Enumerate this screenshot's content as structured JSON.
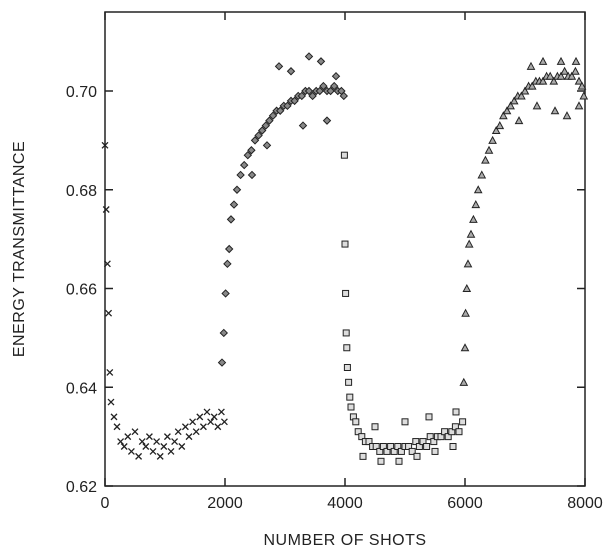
{
  "chart_data": {
    "type": "scatter",
    "title": "",
    "xlabel": "NUMBER OF SHOTS",
    "ylabel": "ENERGY TRANSMITTANCE",
    "xlim": [
      0,
      8000
    ],
    "ylim": [
      0.62,
      0.716
    ],
    "grid": false,
    "legend": "none",
    "x_ticks": [
      {
        "value": 0,
        "label": "0"
      },
      {
        "value": 2000,
        "label": "2000"
      },
      {
        "value": 4000,
        "label": "4000"
      },
      {
        "value": 6000,
        "label": "6000"
      },
      {
        "value": 8000,
        "label": "8000"
      }
    ],
    "y_ticks": [
      {
        "value": 0.62,
        "label": "0.62"
      },
      {
        "value": 0.64,
        "label": "0.64"
      },
      {
        "value": 0.66,
        "label": "0.66"
      },
      {
        "value": 0.68,
        "label": "0.68"
      },
      {
        "value": 0.7,
        "label": "0.70"
      }
    ],
    "series": [
      {
        "marker": "x",
        "color": "#222222",
        "points": [
          [
            0,
            0.689
          ],
          [
            20,
            0.676
          ],
          [
            40,
            0.665
          ],
          [
            60,
            0.655
          ],
          [
            80,
            0.643
          ],
          [
            100,
            0.637
          ],
          [
            150,
            0.634
          ],
          [
            200,
            0.632
          ],
          [
            260,
            0.629
          ],
          [
            320,
            0.628
          ],
          [
            380,
            0.63
          ],
          [
            440,
            0.627
          ],
          [
            500,
            0.631
          ],
          [
            560,
            0.626
          ],
          [
            620,
            0.629
          ],
          [
            680,
            0.628
          ],
          [
            740,
            0.63
          ],
          [
            800,
            0.627
          ],
          [
            860,
            0.629
          ],
          [
            920,
            0.626
          ],
          [
            980,
            0.628
          ],
          [
            1040,
            0.63
          ],
          [
            1100,
            0.627
          ],
          [
            1160,
            0.629
          ],
          [
            1220,
            0.631
          ],
          [
            1280,
            0.628
          ],
          [
            1340,
            0.632
          ],
          [
            1400,
            0.63
          ],
          [
            1460,
            0.633
          ],
          [
            1520,
            0.631
          ],
          [
            1580,
            0.634
          ],
          [
            1640,
            0.632
          ],
          [
            1700,
            0.635
          ],
          [
            1760,
            0.633
          ],
          [
            1820,
            0.634
          ],
          [
            1880,
            0.632
          ],
          [
            1940,
            0.635
          ],
          [
            1990,
            0.633
          ]
        ]
      },
      {
        "marker": "diamond",
        "color": "#222222",
        "points": [
          [
            1950,
            0.645
          ],
          [
            1980,
            0.651
          ],
          [
            2010,
            0.659
          ],
          [
            2040,
            0.665
          ],
          [
            2070,
            0.668
          ],
          [
            2100,
            0.674
          ],
          [
            2150,
            0.677
          ],
          [
            2200,
            0.68
          ],
          [
            2260,
            0.683
          ],
          [
            2320,
            0.685
          ],
          [
            2380,
            0.687
          ],
          [
            2440,
            0.688
          ],
          [
            2500,
            0.69
          ],
          [
            2560,
            0.691
          ],
          [
            2620,
            0.692
          ],
          [
            2680,
            0.693
          ],
          [
            2740,
            0.694
          ],
          [
            2800,
            0.695
          ],
          [
            2860,
            0.696
          ],
          [
            2920,
            0.696
          ],
          [
            2980,
            0.697
          ],
          [
            3040,
            0.697
          ],
          [
            3100,
            0.698
          ],
          [
            3160,
            0.698
          ],
          [
            3220,
            0.699
          ],
          [
            3280,
            0.699
          ],
          [
            3340,
            0.7
          ],
          [
            3400,
            0.7
          ],
          [
            3460,
            0.699
          ],
          [
            3520,
            0.7
          ],
          [
            3580,
            0.7
          ],
          [
            3640,
            0.701
          ],
          [
            3700,
            0.7
          ],
          [
            3760,
            0.7
          ],
          [
            3820,
            0.701
          ],
          [
            3880,
            0.7
          ],
          [
            3940,
            0.7
          ],
          [
            3980,
            0.699
          ],
          [
            2900,
            0.705
          ],
          [
            3100,
            0.704
          ],
          [
            3400,
            0.707
          ],
          [
            3600,
            0.706
          ],
          [
            3300,
            0.693
          ],
          [
            3700,
            0.694
          ],
          [
            3850,
            0.703
          ],
          [
            2450,
            0.683
          ],
          [
            2700,
            0.689
          ]
        ]
      },
      {
        "marker": "square",
        "color": "#222222",
        "points": [
          [
            3990,
            0.687
          ],
          [
            4000,
            0.669
          ],
          [
            4010,
            0.659
          ],
          [
            4020,
            0.651
          ],
          [
            4030,
            0.648
          ],
          [
            4040,
            0.644
          ],
          [
            4060,
            0.641
          ],
          [
            4080,
            0.638
          ],
          [
            4100,
            0.636
          ],
          [
            4140,
            0.634
          ],
          [
            4180,
            0.633
          ],
          [
            4220,
            0.631
          ],
          [
            4280,
            0.63
          ],
          [
            4340,
            0.629
          ],
          [
            4400,
            0.629
          ],
          [
            4460,
            0.628
          ],
          [
            4520,
            0.628
          ],
          [
            4580,
            0.627
          ],
          [
            4640,
            0.628
          ],
          [
            4700,
            0.627
          ],
          [
            4760,
            0.628
          ],
          [
            4820,
            0.627
          ],
          [
            4880,
            0.628
          ],
          [
            4940,
            0.627
          ],
          [
            5000,
            0.628
          ],
          [
            5060,
            0.628
          ],
          [
            5120,
            0.627
          ],
          [
            5180,
            0.629
          ],
          [
            5240,
            0.628
          ],
          [
            5300,
            0.629
          ],
          [
            5360,
            0.628
          ],
          [
            5420,
            0.63
          ],
          [
            5480,
            0.629
          ],
          [
            5540,
            0.63
          ],
          [
            5600,
            0.63
          ],
          [
            5660,
            0.631
          ],
          [
            5720,
            0.63
          ],
          [
            5780,
            0.631
          ],
          [
            5840,
            0.632
          ],
          [
            5900,
            0.631
          ],
          [
            5960,
            0.633
          ],
          [
            4300,
            0.626
          ],
          [
            4600,
            0.625
          ],
          [
            4900,
            0.625
          ],
          [
            5200,
            0.626
          ],
          [
            5500,
            0.627
          ],
          [
            5800,
            0.628
          ],
          [
            4500,
            0.632
          ],
          [
            5000,
            0.633
          ],
          [
            5400,
            0.634
          ],
          [
            5850,
            0.635
          ]
        ]
      },
      {
        "marker": "triangle",
        "color": "#222222",
        "points": [
          [
            5980,
            0.641
          ],
          [
            6000,
            0.648
          ],
          [
            6010,
            0.655
          ],
          [
            6030,
            0.66
          ],
          [
            6050,
            0.665
          ],
          [
            6070,
            0.669
          ],
          [
            6100,
            0.671
          ],
          [
            6140,
            0.674
          ],
          [
            6180,
            0.677
          ],
          [
            6220,
            0.68
          ],
          [
            6280,
            0.683
          ],
          [
            6340,
            0.686
          ],
          [
            6400,
            0.688
          ],
          [
            6460,
            0.69
          ],
          [
            6520,
            0.692
          ],
          [
            6580,
            0.693
          ],
          [
            6640,
            0.695
          ],
          [
            6700,
            0.696
          ],
          [
            6760,
            0.697
          ],
          [
            6820,
            0.698
          ],
          [
            6880,
            0.699
          ],
          [
            6940,
            0.699
          ],
          [
            7000,
            0.7
          ],
          [
            7060,
            0.701
          ],
          [
            7120,
            0.701
          ],
          [
            7180,
            0.702
          ],
          [
            7240,
            0.702
          ],
          [
            7300,
            0.702
          ],
          [
            7360,
            0.703
          ],
          [
            7420,
            0.703
          ],
          [
            7480,
            0.702
          ],
          [
            7540,
            0.703
          ],
          [
            7600,
            0.703
          ],
          [
            7660,
            0.704
          ],
          [
            7720,
            0.703
          ],
          [
            7780,
            0.703
          ],
          [
            7840,
            0.704
          ],
          [
            7900,
            0.702
          ],
          [
            7950,
            0.701
          ],
          [
            7980,
            0.699
          ],
          [
            7100,
            0.705
          ],
          [
            7300,
            0.706
          ],
          [
            7600,
            0.706
          ],
          [
            7850,
            0.706
          ],
          [
            7200,
            0.697
          ],
          [
            7500,
            0.696
          ],
          [
            7700,
            0.695
          ],
          [
            6900,
            0.694
          ],
          [
            7900,
            0.697
          ]
        ]
      }
    ]
  }
}
